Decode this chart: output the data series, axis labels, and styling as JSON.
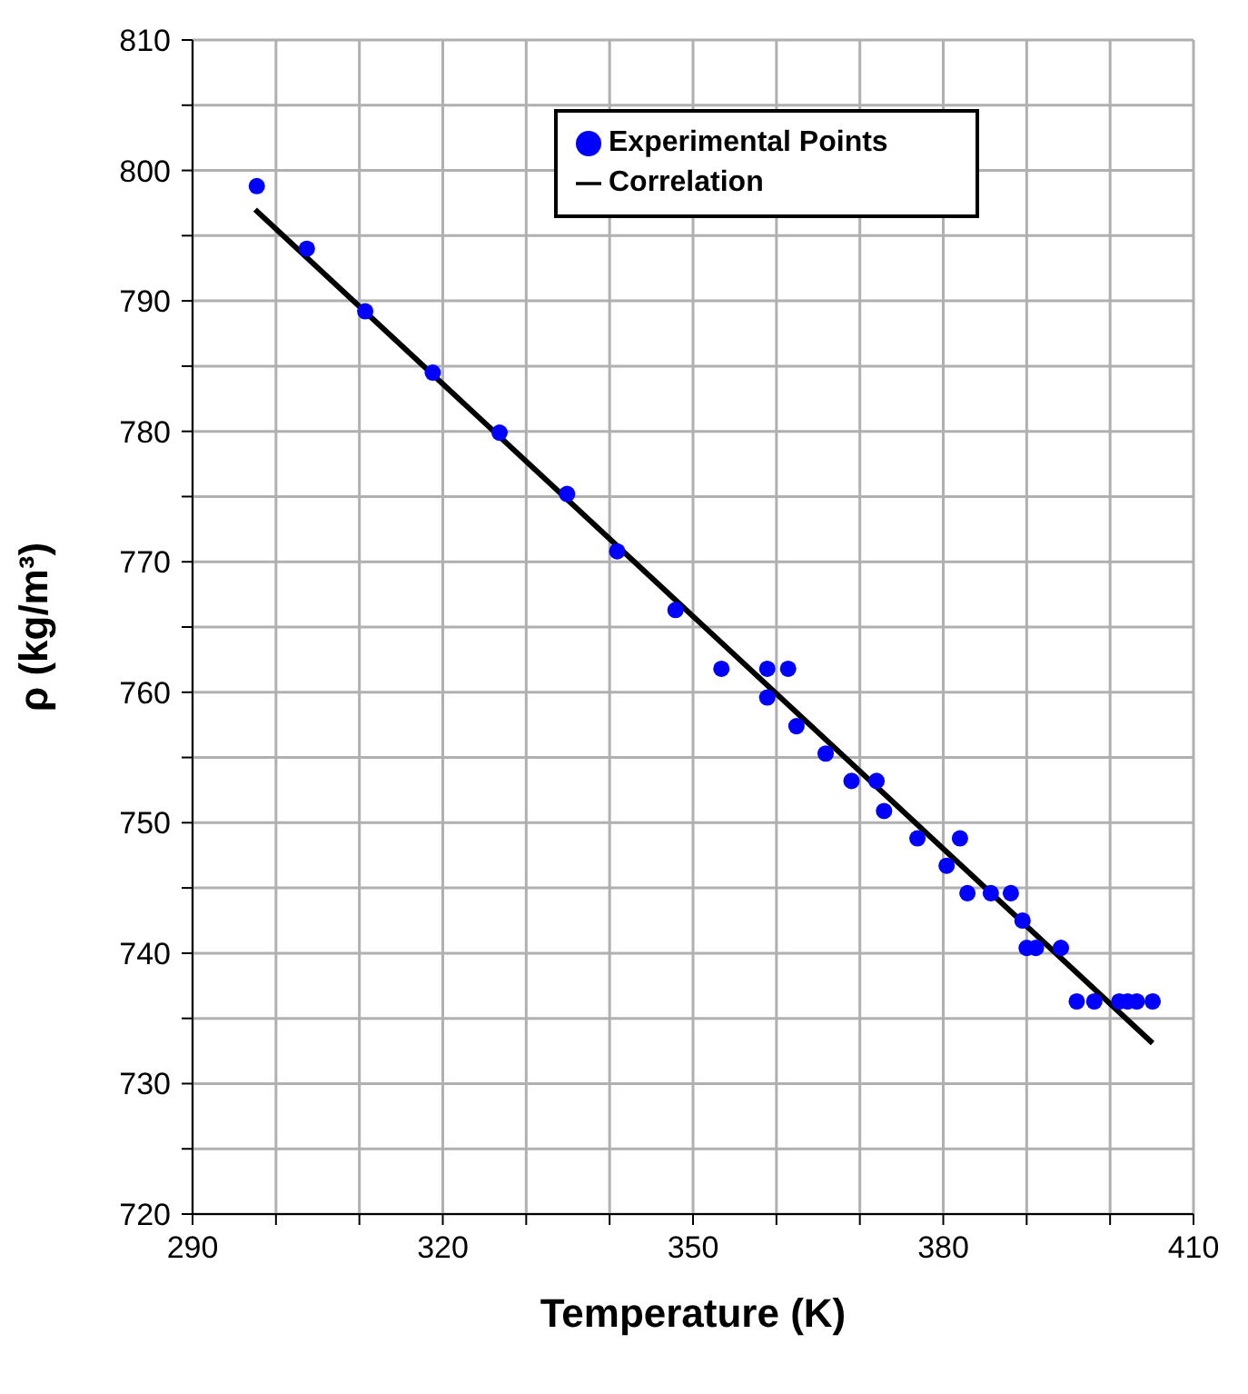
{
  "chart_data": {
    "type": "scatter",
    "xlabel": "Temperature (K)",
    "ylabel": "ρ (kg/m³)",
    "xlim": [
      290,
      410
    ],
    "xticks": [
      290,
      {
        "value": 300,
        "label": null
      },
      {
        "value": 310,
        "label": null
      },
      320,
      {
        "value": 330,
        "label": null
      },
      {
        "value": 340,
        "label": null
      },
      350,
      {
        "value": 360,
        "label": null
      },
      {
        "value": 370,
        "label": null
      },
      380,
      {
        "value": 390,
        "label": null
      },
      {
        "value": 400,
        "label": null
      },
      410
    ],
    "ylim": [
      720,
      810
    ],
    "yticks": [
      720,
      {
        "value": 725,
        "label": null
      },
      730,
      {
        "value": 735,
        "label": null
      },
      740,
      {
        "value": 745,
        "label": null
      },
      750,
      {
        "value": 755,
        "label": null
      },
      760,
      {
        "value": 765,
        "label": null
      },
      770,
      {
        "value": 775,
        "label": null
      },
      780,
      {
        "value": 785,
        "label": null
      },
      790,
      {
        "value": 795,
        "label": null
      },
      800,
      {
        "value": 805,
        "label": null
      },
      810
    ],
    "grid": true,
    "legend": "top right",
    "marker": "circle",
    "series": [
      {
        "name": "Experimental Points",
        "color": "#0000ff",
        "x": [
          297.7,
          303.7,
          310.7,
          318.8,
          326.8,
          334.9,
          340.9,
          347.9,
          353.4,
          358.9,
          361.4,
          358.9,
          362.4,
          365.9,
          369.0,
          372.0,
          372.9,
          376.9,
          382.0,
          380.4,
          382.9,
          385.7,
          388.1,
          389.5,
          390.0,
          391.1,
          394.1,
          396.0,
          398.1,
          401.1,
          402.1,
          403.2,
          405.1
        ],
        "values": [
          798.8,
          794.0,
          789.2,
          784.5,
          779.9,
          775.2,
          770.8,
          766.3,
          761.8,
          761.8,
          761.8,
          759.6,
          757.4,
          755.3,
          753.2,
          753.2,
          750.9,
          748.8,
          748.8,
          746.7,
          744.6,
          744.6,
          744.6,
          742.5,
          740.4,
          740.4,
          740.4,
          736.3,
          736.3,
          736.3,
          736.3,
          736.3,
          736.3
        ]
      },
      {
        "name": "Correlation",
        "type": "line",
        "color": "#000000",
        "marker": "none",
        "x": [
          297.5,
          405.1
        ],
        "values": [
          797.0,
          733.1
        ]
      }
    ]
  }
}
